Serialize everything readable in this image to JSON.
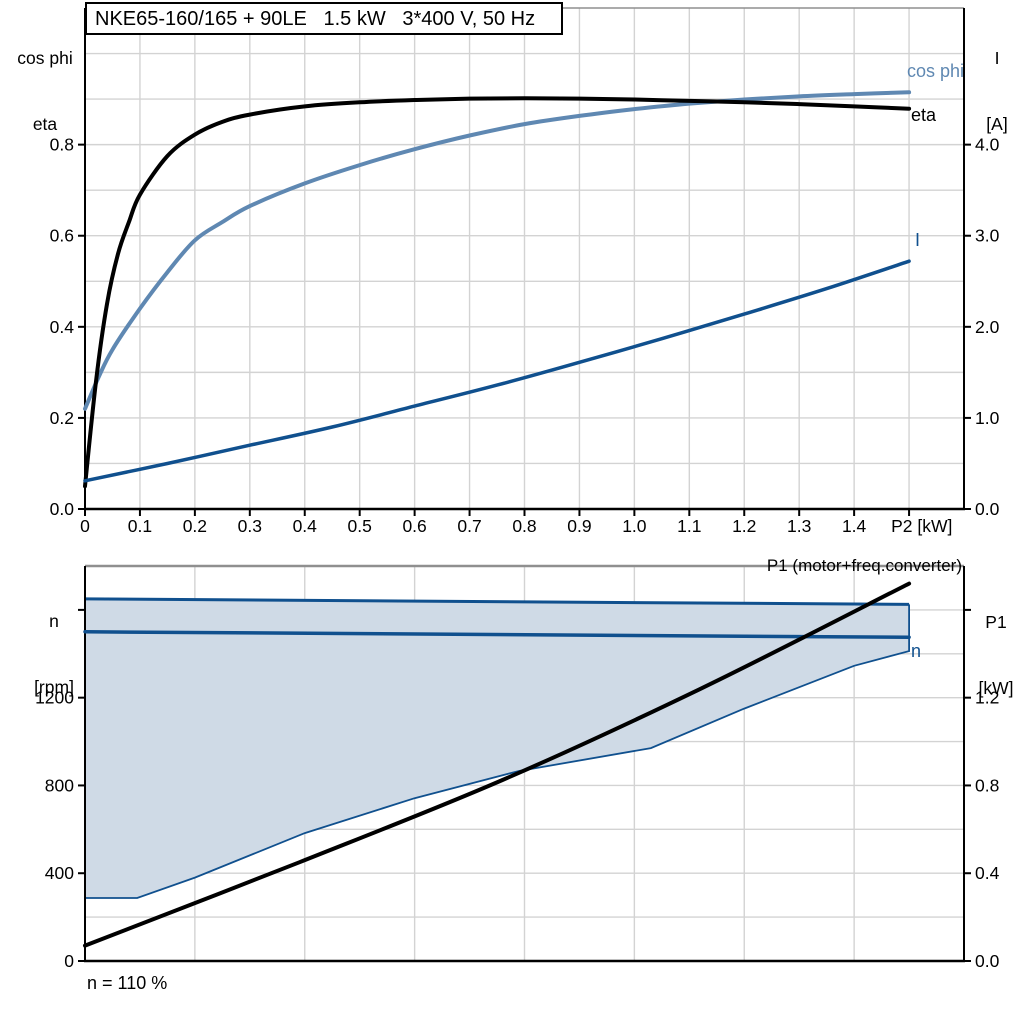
{
  "title": "NKE65-160/165 + 90LE   1.5 kW   3*400 V, 50 Hz",
  "colors": {
    "curve_blue_light": "#5f88b2",
    "curve_blue_dark": "#10508e",
    "band_fill": "#cfdae6",
    "grid": "#d3d3d3",
    "frame_top": "#8f8f8f",
    "black": "#000000"
  },
  "chart_data": [
    {
      "type": "line",
      "title": "NKE65-160/165 + 90LE   1.5 kW   3*400 V, 50 Hz",
      "xlabel": "P2 [kW]",
      "x_range": [
        0,
        1.6
      ],
      "x_ticks": [
        0,
        0.1,
        0.2,
        0.3,
        0.4,
        0.5,
        0.6,
        0.7,
        0.8,
        0.9,
        1.0,
        1.1,
        1.2,
        1.3,
        1.4,
        1.5
      ],
      "x_tick_labels": [
        "0",
        "0.1",
        "0.2",
        "0.3",
        "0.4",
        "0.5",
        "0.6",
        "0.7",
        "0.8",
        "0.9",
        "1.0",
        "1.1",
        "1.2",
        "1.3",
        "1.4",
        ""
      ],
      "grid": {
        "x_step": 0.1,
        "y_step": 0.1
      },
      "y_left": {
        "header": [
          "cos phi",
          "eta"
        ],
        "range": [
          0,
          1.1
        ],
        "ticks": [
          0,
          0.2,
          0.4,
          0.6,
          0.8
        ],
        "tick_labels": [
          "0.0",
          "0.2",
          "0.4",
          "0.6",
          "0.8"
        ]
      },
      "y_right": {
        "header": [
          "I",
          "[A]"
        ],
        "range": [
          0,
          5.5
        ],
        "ticks": [
          0,
          1,
          2,
          3,
          4
        ],
        "tick_labels": [
          "0.0",
          "1.0",
          "2.0",
          "3.0",
          "4.0"
        ]
      },
      "series": [
        {
          "name": "cos phi",
          "axis": "left",
          "color_key": "curve_blue_light",
          "width": 4,
          "smooth": true,
          "points": [
            [
              0,
              0.22
            ],
            [
              0.025,
              0.29
            ],
            [
              0.05,
              0.35
            ],
            [
              0.1,
              0.44
            ],
            [
              0.15,
              0.52
            ],
            [
              0.2,
              0.59
            ],
            [
              0.25,
              0.63
            ],
            [
              0.3,
              0.665
            ],
            [
              0.4,
              0.715
            ],
            [
              0.5,
              0.755
            ],
            [
              0.6,
              0.79
            ],
            [
              0.7,
              0.82
            ],
            [
              0.8,
              0.845
            ],
            [
              0.9,
              0.863
            ],
            [
              1.0,
              0.878
            ],
            [
              1.1,
              0.89
            ],
            [
              1.2,
              0.899
            ],
            [
              1.3,
              0.906
            ],
            [
              1.4,
              0.911
            ],
            [
              1.5,
              0.915
            ]
          ]
        },
        {
          "name": "eta",
          "axis": "left",
          "color_key": "black",
          "width": 4,
          "smooth": true,
          "points": [
            [
              0,
              0.05
            ],
            [
              0.02,
              0.28
            ],
            [
              0.04,
              0.45
            ],
            [
              0.06,
              0.56
            ],
            [
              0.08,
              0.63
            ],
            [
              0.1,
              0.69
            ],
            [
              0.15,
              0.775
            ],
            [
              0.2,
              0.822
            ],
            [
              0.25,
              0.85
            ],
            [
              0.3,
              0.866
            ],
            [
              0.4,
              0.884
            ],
            [
              0.5,
              0.893
            ],
            [
              0.6,
              0.898
            ],
            [
              0.7,
              0.901
            ],
            [
              0.8,
              0.902
            ],
            [
              0.9,
              0.901
            ],
            [
              1.0,
              0.899
            ],
            [
              1.1,
              0.896
            ],
            [
              1.2,
              0.893
            ],
            [
              1.3,
              0.889
            ],
            [
              1.4,
              0.884
            ],
            [
              1.5,
              0.879
            ]
          ]
        },
        {
          "name": "I",
          "axis": "right",
          "color_key": "curve_blue_dark",
          "width": 3.5,
          "smooth": true,
          "points": [
            [
              0,
              0.31
            ],
            [
              0.15,
              0.5
            ],
            [
              0.3,
              0.7
            ],
            [
              0.45,
              0.9
            ],
            [
              0.6,
              1.13
            ],
            [
              0.75,
              1.36
            ],
            [
              0.9,
              1.61
            ],
            [
              1.05,
              1.87
            ],
            [
              1.2,
              2.14
            ],
            [
              1.35,
              2.42
            ],
            [
              1.5,
              2.72
            ]
          ]
        }
      ]
    },
    {
      "type": "line",
      "top_right_label": "P1 (motor+freq.converter)",
      "bottom_note": "n = 110 %",
      "x_range": [
        0,
        1.6
      ],
      "x_ticks": [],
      "x_tick_labels": [],
      "grid": {
        "x_step": 0.2,
        "y_step": 200
      },
      "y_left": {
        "header": [
          "n",
          "[rpm]"
        ],
        "range": [
          0,
          1800
        ],
        "ticks": [
          0,
          400,
          800,
          1200,
          1600
        ],
        "tick_labels": [
          "0",
          "400",
          "800",
          "1200",
          ""
        ]
      },
      "y_right": {
        "header": [
          "P1",
          "[kW]"
        ],
        "range": [
          0,
          1.8
        ],
        "ticks": [
          0,
          0.4,
          0.8,
          1.2,
          1.6
        ],
        "tick_labels": [
          "0.0",
          "0.4",
          "0.8",
          "1.2",
          ""
        ]
      },
      "band": {
        "name": "speed range",
        "axis": "left",
        "upper": [
          [
            0,
            1650
          ],
          [
            1.5,
            1625
          ]
        ],
        "lower": [
          [
            0,
            287
          ],
          [
            0.095,
            287
          ],
          [
            0.2,
            380
          ],
          [
            0.4,
            583
          ],
          [
            0.6,
            742
          ],
          [
            0.79,
            866
          ],
          [
            1.03,
            970
          ],
          [
            1.2,
            1150
          ],
          [
            1.4,
            1345
          ],
          [
            1.5,
            1412
          ]
        ]
      },
      "series": [
        {
          "name": "n",
          "axis": "left",
          "color_key": "curve_blue_dark",
          "width": 3.5,
          "smooth": false,
          "points": [
            [
              0,
              1500
            ],
            [
              1.5,
              1475
            ]
          ]
        },
        {
          "name": "P1 (motor+freq.converter)",
          "axis": "right",
          "color_key": "black",
          "width": 4,
          "smooth": true,
          "points": [
            [
              0,
              0.07
            ],
            [
              0.39,
              0.45
            ],
            [
              0.76,
              0.825
            ],
            [
              1.12,
              1.24
            ],
            [
              1.5,
              1.72
            ]
          ]
        }
      ]
    }
  ]
}
